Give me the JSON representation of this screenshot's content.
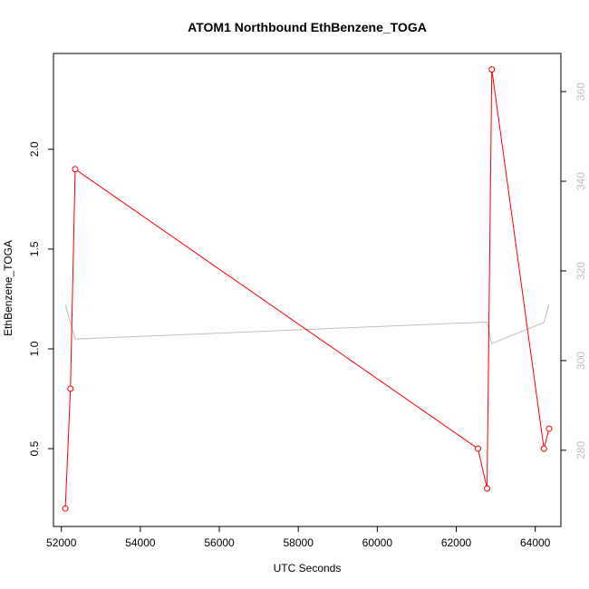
{
  "chart_data": {
    "type": "line",
    "title": "ATOM1 Northbound EthBenzene_TOGA",
    "xlabel": "UTC Seconds",
    "ylabel": "EthBenzene_TOGA",
    "xlim": [
      51800,
      64650
    ],
    "ylim": [
      0.11,
      2.48
    ],
    "y2lim": [
      263.0,
      368.5
    ],
    "xticks": [
      52000,
      54000,
      56000,
      58000,
      60000,
      62000,
      64000
    ],
    "xtick_labels": [
      "52000",
      "54000",
      "56000",
      "58000",
      "60000",
      "62000",
      "64000"
    ],
    "yticks": [
      0.5,
      1.0,
      1.5,
      2.0
    ],
    "ytick_labels": [
      "0.5",
      "1.0",
      "1.5",
      "2.0"
    ],
    "y2ticks": [
      280,
      300,
      320,
      340,
      360
    ],
    "y2tick_labels": [
      "280",
      "300",
      "320",
      "340",
      "360"
    ],
    "grid": false,
    "series": [
      {
        "axis": "left",
        "color": "#ff0000",
        "marker": "open-circle",
        "points": [
          {
            "x": 52100,
            "y": 0.2
          },
          {
            "x": 52230,
            "y": 0.8
          },
          {
            "x": 52350,
            "y": 1.9
          },
          {
            "x": 62550,
            "y": 0.5
          },
          {
            "x": 62780,
            "y": 0.3
          },
          {
            "x": 62900,
            "y": 2.4
          },
          {
            "x": 64220,
            "y": 0.5
          },
          {
            "x": 64350,
            "y": 0.6
          }
        ]
      },
      {
        "axis": "right",
        "color": "#bebebe",
        "marker": "none",
        "points": [
          {
            "x": 52100,
            "y": 312.5
          },
          {
            "x": 52350,
            "y": 304.8
          },
          {
            "x": 62780,
            "y": 308.6
          },
          {
            "x": 62900,
            "y": 303.8
          },
          {
            "x": 64220,
            "y": 308.5
          },
          {
            "x": 64350,
            "y": 312.6
          }
        ]
      }
    ]
  }
}
